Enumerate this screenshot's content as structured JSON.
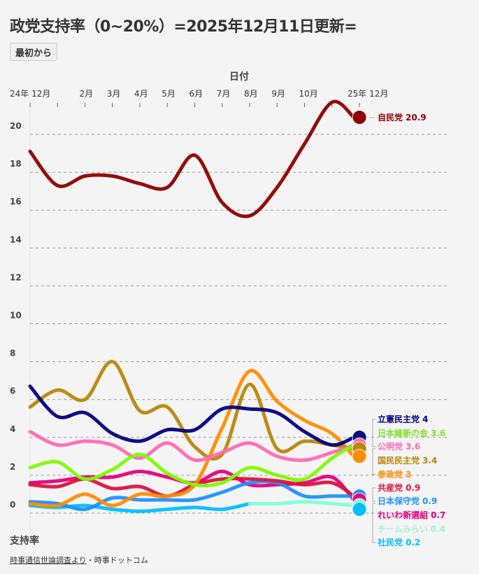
{
  "title": "政党支持率（0~20%）=2025年12月11日更新=",
  "reset_button": "最初から",
  "footer": {
    "source_link": "時事通信世論調査より",
    "separator": "・",
    "publisher": "時事ドットコム"
  },
  "chart_data": {
    "type": "line",
    "title": "政党支持率（0~20%）=2025年12月11日更新=",
    "xlabel": "日付",
    "ylabel": "支持率",
    "x_tick_labels": [
      "24年 12月",
      "",
      "2月",
      "3月",
      "4月",
      "5月",
      "6月",
      "7月",
      "8月",
      "9月",
      "10月",
      "",
      "25年 12月"
    ],
    "x": [
      "2024-12",
      "2025-01",
      "2025-02",
      "2025-03",
      "2025-04",
      "2025-05",
      "2025-06",
      "2025-07",
      "2025-08",
      "2025-09",
      "2025-10",
      "2025-11",
      "2025-12"
    ],
    "ylim": [
      0,
      21
    ],
    "y_ticks": [
      0,
      2,
      4,
      6,
      8,
      10,
      12,
      14,
      16,
      18,
      20
    ],
    "grid": true,
    "legend_placement": "right",
    "series": [
      {
        "name": "自民党",
        "color": "#8b0000",
        "label_value": "20.9",
        "values": [
          19.1,
          17.3,
          17.8,
          17.8,
          17.4,
          17.2,
          18.9,
          16.4,
          15.7,
          17.2,
          19.5,
          21.7,
          20.9
        ]
      },
      {
        "name": "立憲民主党",
        "color": "#000080",
        "label_value": "4",
        "values": [
          6.7,
          5.1,
          5.3,
          4.2,
          3.8,
          4.4,
          4.4,
          5.5,
          5.5,
          5.3,
          4.3,
          3.6,
          4.0
        ]
      },
      {
        "name": "日本維新の会",
        "color": "#7cfc00",
        "label_value": "3.6",
        "values": [
          2.4,
          2.7,
          1.8,
          2.3,
          3.1,
          2.1,
          1.5,
          1.6,
          2.4,
          2.0,
          1.8,
          2.9,
          3.6
        ]
      },
      {
        "name": "公明党",
        "color": "#ff69b4",
        "label_value": "3.6",
        "values": [
          4.3,
          3.6,
          3.8,
          3.6,
          2.9,
          3.7,
          2.8,
          3.2,
          3.7,
          3.0,
          2.8,
          3.2,
          3.6
        ]
      },
      {
        "name": "国民民主党",
        "color": "#b8860b",
        "label_value": "3.4",
        "values": [
          5.6,
          6.5,
          6.0,
          8.0,
          5.4,
          5.6,
          3.5,
          3.1,
          6.8,
          3.4,
          3.8,
          3.6,
          3.4
        ]
      },
      {
        "name": "参政党",
        "color": "#ff8c00",
        "label_value": "3",
        "values": [
          0.5,
          0.4,
          1.0,
          0.4,
          1.0,
          0.9,
          1.5,
          4.5,
          7.5,
          5.9,
          4.9,
          4.2,
          3.0
        ]
      },
      {
        "name": "共産党",
        "color": "#dc143c",
        "label_value": "0.9",
        "values": [
          1.5,
          1.4,
          1.8,
          1.3,
          1.4,
          0.9,
          1.5,
          1.8,
          1.8,
          1.7,
          1.5,
          1.6,
          0.9
        ]
      },
      {
        "name": "日本保守党",
        "color": "#1e90ff",
        "label_value": "0.9",
        "values": [
          0.6,
          0.5,
          0.2,
          0.8,
          0.7,
          0.7,
          0.7,
          1.1,
          1.6,
          1.6,
          0.9,
          0.9,
          0.9
        ]
      },
      {
        "name": "れいわ新選組",
        "color": "#e6007e",
        "label_value": "0.7",
        "values": [
          1.6,
          1.7,
          1.9,
          1.9,
          2.2,
          1.9,
          1.6,
          2.2,
          1.5,
          1.5,
          1.6,
          1.9,
          0.7
        ]
      },
      {
        "name": "チームみらい",
        "color": "#7fffd4",
        "label_value": "0.4",
        "values": [
          null,
          null,
          null,
          null,
          null,
          null,
          null,
          null,
          0.5,
          0.5,
          0.6,
          0.5,
          0.4
        ]
      },
      {
        "name": "社民党",
        "color": "#00bfff",
        "label_value": "0.2",
        "values": [
          0.4,
          0.3,
          0.4,
          0.2,
          0.1,
          0.2,
          0.3,
          0.2,
          0.5,
          null,
          null,
          null,
          0.2
        ]
      }
    ]
  }
}
